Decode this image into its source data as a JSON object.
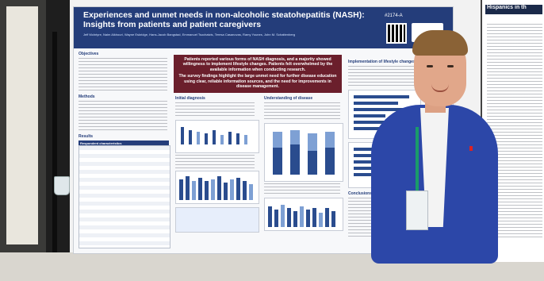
{
  "poster": {
    "title": "Experiences and unmet needs in non-alcoholic steatohepatitis (NASH): Insights from patients and patient caregivers",
    "authors": "Jeff McIntyre, Naim Alkhouri, Wayne Eskridge, Hans-Jacob Bangstad, Emmanuel Tsochatzis, Teresa Casanovas, Ramy Younes, John M. Schattenberg",
    "poster_id": "#2174-A",
    "callout_line1": "Patients reported various forms of NASH diagnosis, and a majority showed willingness to implement lifestyle changes. Patients felt overwhelmed by the available information when conducting research.",
    "callout_line2": "The survey findings highlight the large unmet need for further disease education using clear, reliable information sources, and the need for improvements in disease management.",
    "headings": {
      "objectives": "Objectives",
      "methods": "Methods",
      "results": "Results",
      "respondent": "Respondent characteristics",
      "initial_diagnosis": "Initial diagnosis",
      "understanding": "Understanding of disease",
      "lifestyle": "Implementation of lifestyle changes",
      "conclusions": "Conclusions"
    }
  },
  "side_poster": {
    "heading": "Hispanics in th"
  }
}
